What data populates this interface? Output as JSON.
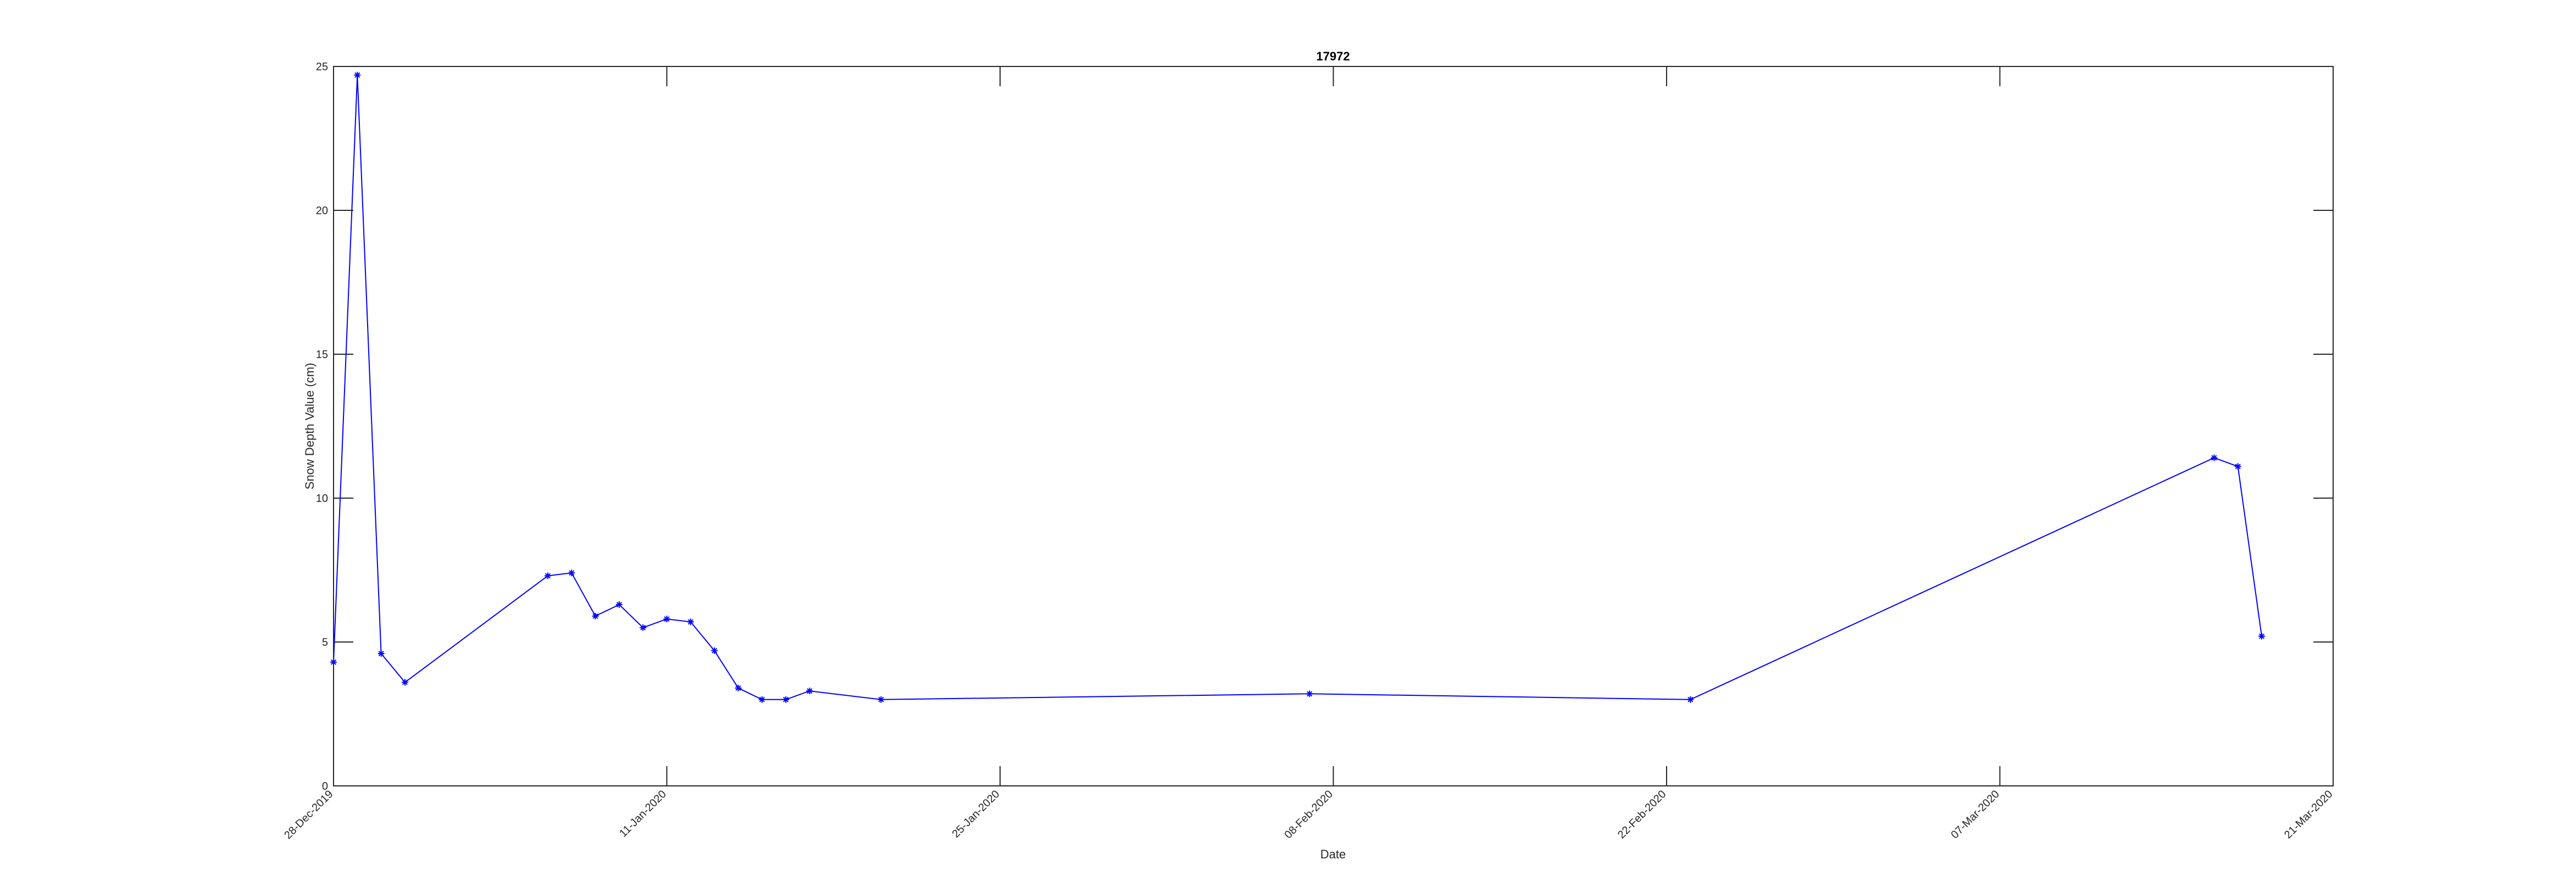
{
  "chart_data": {
    "type": "line",
    "title": "17972",
    "xlabel": "Date",
    "ylabel": "Snow Depth Value (cm)",
    "x_axis_type": "date",
    "xlim": [
      "2019-12-28",
      "2020-03-21"
    ],
    "ylim": [
      0,
      25
    ],
    "x_tick_labels": [
      "28-Dec-2019",
      "11-Jan-2020",
      "25-Jan-2020",
      "08-Feb-2020",
      "22-Feb-2020",
      "07-Mar-2020",
      "21-Mar-2020"
    ],
    "x_tick_values": [
      "2019-12-28",
      "2020-01-11",
      "2020-01-25",
      "2020-02-08",
      "2020-02-22",
      "2020-03-07",
      "2020-03-21"
    ],
    "y_tick_labels": [
      "0",
      "5",
      "10",
      "15",
      "20",
      "25"
    ],
    "y_tick_values": [
      0,
      5,
      10,
      15,
      20,
      25
    ],
    "grid": false,
    "legend": "none",
    "line_color": "#0000ff",
    "marker": "asterisk",
    "series": [
      {
        "x": [
          "2019-12-28",
          "2019-12-29",
          "2019-12-30",
          "2019-12-31",
          "2020-01-06",
          "2020-01-07",
          "2020-01-08",
          "2020-01-09",
          "2020-01-10",
          "2020-01-11",
          "2020-01-12",
          "2020-01-13",
          "2020-01-14",
          "2020-01-15",
          "2020-01-16",
          "2020-01-17",
          "2020-01-20",
          "2020-02-07",
          "2020-02-23",
          "2020-03-16",
          "2020-03-17",
          "2020-03-18"
        ],
        "y": [
          4.3,
          24.7,
          4.6,
          3.6,
          7.3,
          7.4,
          5.9,
          6.3,
          5.5,
          5.8,
          5.7,
          4.7,
          3.4,
          3.0,
          3.0,
          3.3,
          3.0,
          3.2,
          3.0,
          11.4,
          11.1,
          5.2
        ]
      }
    ]
  }
}
